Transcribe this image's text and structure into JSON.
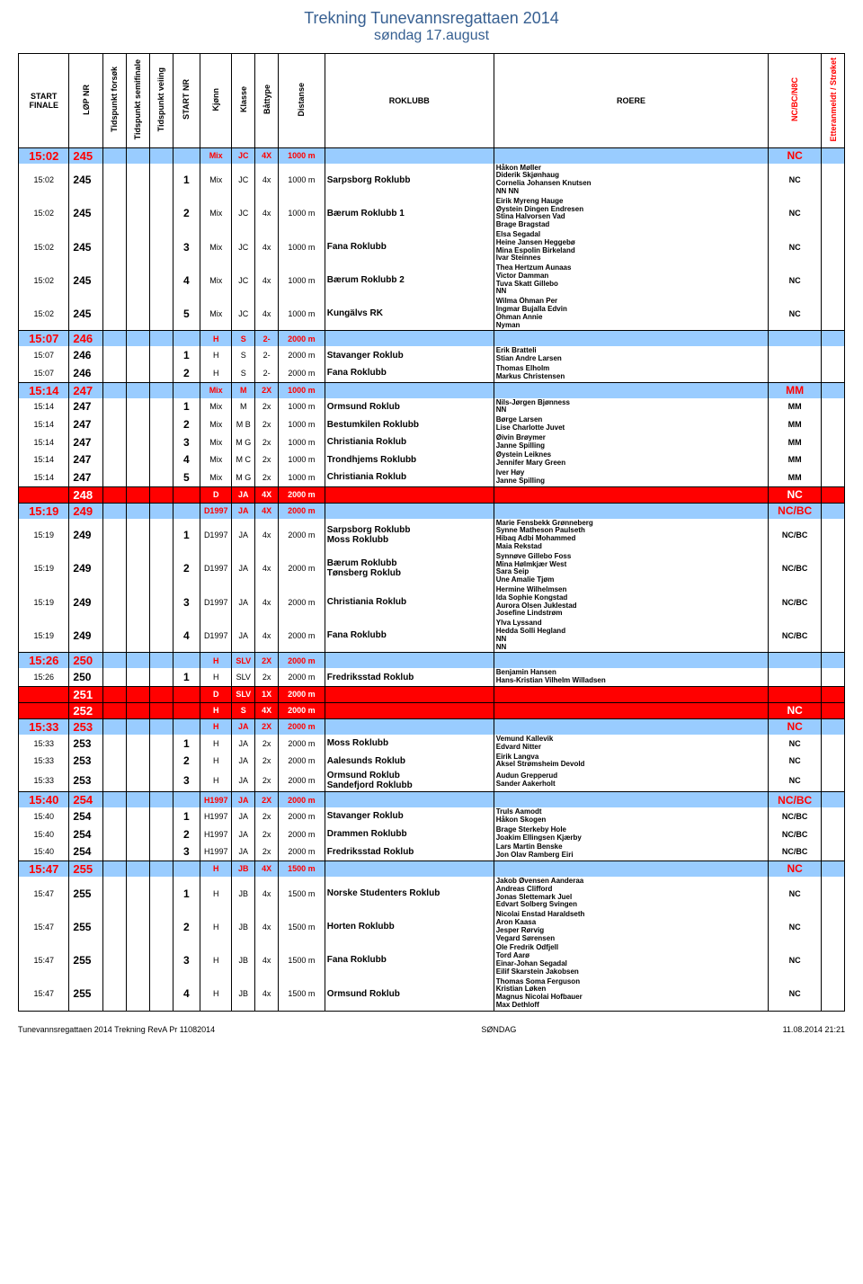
{
  "title": "Trekning Tunevannsregattaen 2014",
  "subtitle": "søndag 17.august",
  "headers": {
    "start": "START FINALE",
    "lop": "LØP NR",
    "tf": "Tidspunkt forsøk",
    "ts": "Tidspunkt semifinale",
    "tv": "Tidspunkt veiing",
    "snr": "START NR",
    "kj": "Kjønn",
    "kl": "Klasse",
    "bt": "Båttype",
    "di": "Distanse",
    "club": "ROKLUBB",
    "roere": "ROERE",
    "nc": "NC/BC/N8C",
    "et": "Etteranmeldt / Strøket"
  },
  "races": [
    {
      "style": "blue",
      "start": "15:02",
      "lop": "245",
      "kj": "Mix",
      "kl": "JC",
      "bt": "4X",
      "di": "1000 m",
      "nc": "NC",
      "rows": [
        {
          "start": "15:02",
          "lop": "245",
          "snr": "1",
          "kj": "Mix",
          "kl": "JC",
          "bt": "4x",
          "di": "1000 m",
          "club": "Sarpsborg Roklubb",
          "roere": "Håkon Møller\nDiderik Skjønhaug\nCornelia Johansen Knutsen\nNN NN",
          "nc": "NC"
        },
        {
          "start": "15:02",
          "lop": "245",
          "snr": "2",
          "kj": "Mix",
          "kl": "JC",
          "bt": "4x",
          "di": "1000 m",
          "club": "Bærum Roklubb 1",
          "roere": "Eirik Myreng Hauge\nØystein Dingen Endresen\nStina Halvorsen Vad\nBrage Bragstad",
          "nc": "NC"
        },
        {
          "start": "15:02",
          "lop": "245",
          "snr": "3",
          "kj": "Mix",
          "kl": "JC",
          "bt": "4x",
          "di": "1000 m",
          "club": "Fana Roklubb",
          "roere": "Elsa Segadal\nHeine Jansen Heggebø\nMina Espolin Birkeland\nIvar Steinnes",
          "nc": "NC"
        },
        {
          "start": "15:02",
          "lop": "245",
          "snr": "4",
          "kj": "Mix",
          "kl": "JC",
          "bt": "4x",
          "di": "1000 m",
          "club": "Bærum Roklubb 2",
          "roere": "Thea Hertzum Aunaas\nVictor Damman\nTuva Skatt Gillebo\nNN",
          "nc": "NC"
        },
        {
          "start": "15:02",
          "lop": "245",
          "snr": "5",
          "kj": "Mix",
          "kl": "JC",
          "bt": "4x",
          "di": "1000 m",
          "club": "Kungälvs RK",
          "roere": "Wilma Öhman            Per\nIngmar Bujalla          Edvin\nÖhman                Annie\nNyman",
          "nc": "NC"
        }
      ]
    },
    {
      "style": "blue",
      "start": "15:07",
      "lop": "246",
      "kj": "H",
      "kl": "S",
      "bt": "2-",
      "di": "2000 m",
      "nc": "",
      "rows": [
        {
          "start": "15:07",
          "lop": "246",
          "snr": "1",
          "kj": "H",
          "kl": "S",
          "bt": "2-",
          "di": "2000 m",
          "club": "Stavanger Roklub",
          "roere": "Erik Bratteli\nStian Andre Larsen",
          "nc": ""
        },
        {
          "start": "15:07",
          "lop": "246",
          "snr": "2",
          "kj": "H",
          "kl": "S",
          "bt": "2-",
          "di": "2000 m",
          "club": "Fana Roklubb",
          "roere": "Thomas Elholm\nMarkus Christensen",
          "nc": ""
        }
      ]
    },
    {
      "style": "blue",
      "start": "15:14",
      "lop": "247",
      "kj": "Mix",
      "kl": "M",
      "bt": "2X",
      "di": "1000 m",
      "nc": "MM",
      "rows": [
        {
          "start": "15:14",
          "lop": "247",
          "snr": "1",
          "kj": "Mix",
          "kl": "M",
          "bt": "2x",
          "di": "1000 m",
          "club": "Ormsund Roklub",
          "roere": "Nils-Jørgen Bjønness\nNN",
          "nc": "MM"
        },
        {
          "start": "15:14",
          "lop": "247",
          "snr": "2",
          "kj": "Mix",
          "kl": "M B",
          "bt": "2x",
          "di": "1000 m",
          "club": "Bestumkilen Roklubb",
          "roere": "Børge Larsen\nLise Charlotte Juvet",
          "nc": "MM"
        },
        {
          "start": "15:14",
          "lop": "247",
          "snr": "3",
          "kj": "Mix",
          "kl": "M G",
          "bt": "2x",
          "di": "1000 m",
          "club": "Christiania Roklub",
          "roere": "Øivin Brøymer\nJanne Spilling",
          "nc": "MM"
        },
        {
          "start": "15:14",
          "lop": "247",
          "snr": "4",
          "kj": "Mix",
          "kl": "M C",
          "bt": "2x",
          "di": "1000 m",
          "club": "Trondhjems Roklubb",
          "roere": "Øystein Leiknes\nJennifer Mary Green",
          "nc": "MM"
        },
        {
          "start": "15:14",
          "lop": "247",
          "snr": "5",
          "kj": "Mix",
          "kl": "M G",
          "bt": "2x",
          "di": "1000 m",
          "club": "Christiania Roklub",
          "roere": "Iver Høy\nJanne Spilling",
          "nc": "MM"
        }
      ]
    },
    {
      "style": "red",
      "start": "",
      "lop": "248",
      "kj": "D",
      "kl": "JA",
      "bt": "4X",
      "di": "2000 m",
      "nc": "NC",
      "rows": []
    },
    {
      "style": "blue",
      "start": "15:19",
      "lop": "249",
      "kj": "D1997",
      "kl": "JA",
      "bt": "4X",
      "di": "2000 m",
      "nc": "NC/BC",
      "rows": [
        {
          "start": "15:19",
          "lop": "249",
          "snr": "1",
          "kj": "D1997",
          "kl": "JA",
          "bt": "4x",
          "di": "2000 m",
          "club": "Sarpsborg Roklubb\nMoss Roklubb",
          "roere": "Marie Fensbekk Grønneberg\nSynne Matheson Paulseth\nHibaq Adbi Mohammed\nMaia Rekstad",
          "nc": "NC/BC"
        },
        {
          "start": "15:19",
          "lop": "249",
          "snr": "2",
          "kj": "D1997",
          "kl": "JA",
          "bt": "4x",
          "di": "2000 m",
          "club": "Bærum Roklubb\nTønsberg Roklub",
          "roere": "Synnøve Gillebo Foss\nMina Hølmkjær West\nSara Seip\nUne Amalie Tjøm",
          "nc": "NC/BC"
        },
        {
          "start": "15:19",
          "lop": "249",
          "snr": "3",
          "kj": "D1997",
          "kl": "JA",
          "bt": "4x",
          "di": "2000 m",
          "club": "Christiania Roklub",
          "roere": "Hermine Wilhelmsen\nIda Sophie Kongstad\nAurora Olsen Juklestad\nJosefine Lindstrøm",
          "nc": "NC/BC"
        },
        {
          "start": "15:19",
          "lop": "249",
          "snr": "4",
          "kj": "D1997",
          "kl": "JA",
          "bt": "4x",
          "di": "2000 m",
          "club": "Fana Roklubb",
          "roere": "Ylva Lyssand\nHedda Solli Hegland\nNN\nNN",
          "nc": "NC/BC"
        }
      ]
    },
    {
      "style": "blue",
      "start": "15:26",
      "lop": "250",
      "kj": "H",
      "kl": "SLV",
      "bt": "2X",
      "di": "2000 m",
      "nc": "",
      "rows": [
        {
          "start": "15:26",
          "lop": "250",
          "snr": "1",
          "kj": "H",
          "kl": "SLV",
          "bt": "2x",
          "di": "2000 m",
          "club": "Fredriksstad Roklub",
          "roere": "Benjamin Hansen\nHans-Kristian Vilhelm Willadsen",
          "nc": ""
        }
      ]
    },
    {
      "style": "red",
      "start": "",
      "lop": "251",
      "kj": "D",
      "kl": "SLV",
      "bt": "1X",
      "di": "2000 m",
      "nc": "",
      "rows": []
    },
    {
      "style": "red",
      "start": "",
      "lop": "252",
      "kj": "H",
      "kl": "S",
      "bt": "4X",
      "di": "2000 m",
      "nc": "NC",
      "rows": []
    },
    {
      "style": "blue",
      "start": "15:33",
      "lop": "253",
      "kj": "H",
      "kl": "JA",
      "bt": "2X",
      "di": "2000 m",
      "nc": "NC",
      "rows": [
        {
          "start": "15:33",
          "lop": "253",
          "snr": "1",
          "kj": "H",
          "kl": "JA",
          "bt": "2x",
          "di": "2000 m",
          "club": "Moss Roklubb",
          "roere": "Vemund Kallevik\nEdvard Nitter",
          "nc": "NC"
        },
        {
          "start": "15:33",
          "lop": "253",
          "snr": "2",
          "kj": "H",
          "kl": "JA",
          "bt": "2x",
          "di": "2000 m",
          "club": "Aalesunds Roklub",
          "roere": "Eirik Langva\nAksel Strømsheim Devold",
          "nc": "NC"
        },
        {
          "start": "15:33",
          "lop": "253",
          "snr": "3",
          "kj": "H",
          "kl": "JA",
          "bt": "2x",
          "di": "2000 m",
          "club": "Ormsund Roklub\nSandefjord Roklubb",
          "roere": "Audun Grepperud\nSander Aakerholt",
          "nc": "NC"
        }
      ]
    },
    {
      "style": "blue",
      "start": "15:40",
      "lop": "254",
      "kj": "H1997",
      "kl": "JA",
      "bt": "2X",
      "di": "2000 m",
      "nc": "NC/BC",
      "rows": [
        {
          "start": "15:40",
          "lop": "254",
          "snr": "1",
          "kj": "H1997",
          "kl": "JA",
          "bt": "2x",
          "di": "2000 m",
          "club": "Stavanger Roklub",
          "roere": "Truls Aamodt\nHåkon Skogen",
          "nc": "NC/BC"
        },
        {
          "start": "15:40",
          "lop": "254",
          "snr": "2",
          "kj": "H1997",
          "kl": "JA",
          "bt": "2x",
          "di": "2000 m",
          "club": "Drammen Roklubb",
          "roere": "Brage Sterkeby Hole\nJoakim Ellingsen Kjærby",
          "nc": "NC/BC"
        },
        {
          "start": "15:40",
          "lop": "254",
          "snr": "3",
          "kj": "H1997",
          "kl": "JA",
          "bt": "2x",
          "di": "2000 m",
          "club": "Fredriksstad Roklub",
          "roere": "Lars Martin Benske\nJon Olav Ramberg Eiri",
          "nc": "NC/BC"
        }
      ]
    },
    {
      "style": "blue",
      "start": "15:47",
      "lop": "255",
      "kj": "H",
      "kl": "JB",
      "bt": "4X",
      "di": "1500 m",
      "nc": "NC",
      "rows": [
        {
          "start": "15:47",
          "lop": "255",
          "snr": "1",
          "kj": "H",
          "kl": "JB",
          "bt": "4x",
          "di": "1500 m",
          "club": "Norske Studenters Roklub",
          "roere": "Jakob Øvensen Aanderaa\nAndreas Clifford\nJonas Slettemark Juel\nEdvart Solberg Svingen",
          "nc": "NC"
        },
        {
          "start": "15:47",
          "lop": "255",
          "snr": "2",
          "kj": "H",
          "kl": "JB",
          "bt": "4x",
          "di": "1500 m",
          "club": "Horten Roklubb",
          "roere": "Nicolai Enstad Haraldseth\nAron Kaasa\nJesper Rørvig\nVegard Sørensen",
          "nc": "NC"
        },
        {
          "start": "15:47",
          "lop": "255",
          "snr": "3",
          "kj": "H",
          "kl": "JB",
          "bt": "4x",
          "di": "1500 m",
          "club": "Fana Roklubb",
          "roere": "Ole Fredrik Odfjell\nTord Aarø\nEinar-Johan Segadal\nEilif Skarstein Jakobsen",
          "nc": "NC"
        },
        {
          "start": "15:47",
          "lop": "255",
          "snr": "4",
          "kj": "H",
          "kl": "JB",
          "bt": "4x",
          "di": "1500 m",
          "club": "Ormsund Roklub",
          "roere": "Thomas Soma Ferguson\nKristian Løken\nMagnus Nicolai Hofbauer\nMax Dethloff",
          "nc": "NC"
        }
      ]
    }
  ],
  "footer": {
    "left": "Tunevannsregattaen 2014 Trekning RevA Pr 11082014",
    "center": "SØNDAG",
    "right": "11.08.2014 21:21"
  }
}
